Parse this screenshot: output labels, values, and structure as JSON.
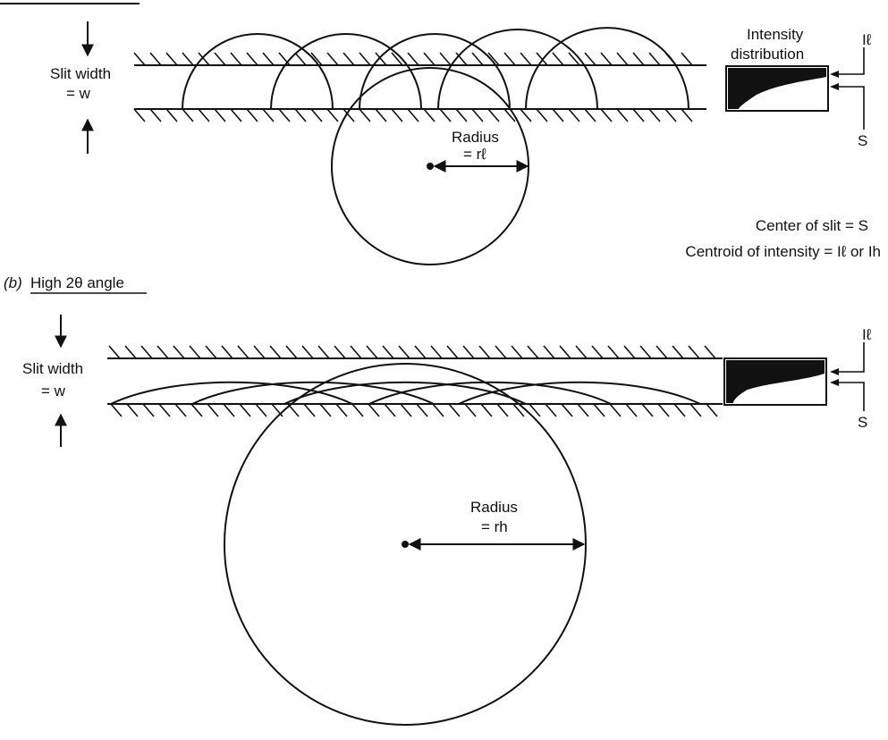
{
  "panel_a": {
    "slit_width_label": "Slit width",
    "slit_width_value": "= w",
    "intensity_label_line1": "Intensity",
    "intensity_label_line2": "distribution",
    "radius_label": "Radius",
    "radius_value": "= rℓ",
    "intensity_marker": "Iℓ",
    "slit_marker": "S",
    "note_center": "Center of slit = S",
    "note_centroid": "Centroid of intensity = Iℓ or Ih"
  },
  "panel_b": {
    "heading_prefix": "(b)",
    "heading": "High 2θ angle",
    "slit_width_label": "Slit width",
    "slit_width_value": "= w",
    "radius_label": "Radius",
    "radius_value": "= rh",
    "intensity_marker": "Iℓ",
    "slit_marker": "S"
  },
  "colors": {
    "ink": "#111111",
    "paper": "#ffffff"
  }
}
